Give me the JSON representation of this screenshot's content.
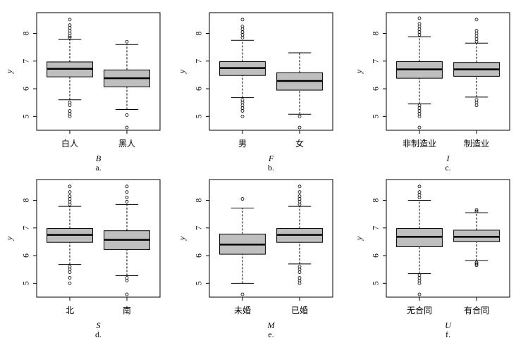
{
  "chart_data": [
    {
      "type": "box",
      "y_label": "y",
      "x_label": "B",
      "caption": "a.",
      "categories": [
        "白人",
        "黑人"
      ],
      "color": "#bfbfbf",
      "ylim": [
        4.5,
        8.75
      ],
      "yticks": [
        5,
        6,
        7,
        8
      ],
      "boxes": [
        {
          "whisker_low": 5.6,
          "q1": 6.43,
          "median": 6.72,
          "q3": 6.97,
          "whisker_high": 7.78,
          "outliers": [
            7.85,
            7.9,
            8.0,
            8.1,
            8.2,
            8.3,
            8.5,
            5.5,
            5.4,
            5.2,
            5.1,
            5.0
          ]
        },
        {
          "whisker_low": 5.25,
          "q1": 6.07,
          "median": 6.38,
          "q3": 6.68,
          "whisker_high": 7.6,
          "outliers": [
            7.7,
            5.05,
            4.6
          ]
        }
      ]
    },
    {
      "type": "box",
      "y_label": "y",
      "x_label": "F",
      "caption": "b.",
      "categories": [
        "男",
        "女"
      ],
      "color": "#bfbfbf",
      "ylim": [
        4.5,
        8.75
      ],
      "yticks": [
        5,
        6,
        7,
        8
      ],
      "boxes": [
        {
          "whisker_low": 5.68,
          "q1": 6.48,
          "median": 6.75,
          "q3": 6.98,
          "whisker_high": 7.75,
          "outliers": [
            7.85,
            7.95,
            8.05,
            8.15,
            8.25,
            8.5,
            5.6,
            5.5,
            5.4,
            5.3,
            5.2,
            5.0
          ]
        },
        {
          "whisker_low": 5.08,
          "q1": 5.95,
          "median": 6.28,
          "q3": 6.58,
          "whisker_high": 7.3,
          "outliers": [
            5.0,
            4.6
          ]
        }
      ]
    },
    {
      "type": "box",
      "y_label": "y",
      "x_label": "I",
      "caption": "c.",
      "categories": [
        "非制造业",
        "制造业"
      ],
      "color": "#bfbfbf",
      "ylim": [
        4.5,
        8.75
      ],
      "yticks": [
        5,
        6,
        7,
        8
      ],
      "boxes": [
        {
          "whisker_low": 5.45,
          "q1": 6.38,
          "median": 6.7,
          "q3": 6.98,
          "whisker_high": 7.88,
          "outliers": [
            7.95,
            8.05,
            8.15,
            8.25,
            8.35,
            8.55,
            5.4,
            5.3,
            5.2,
            5.1,
            5.0,
            4.6
          ]
        },
        {
          "whisker_low": 5.7,
          "q1": 6.45,
          "median": 6.7,
          "q3": 6.95,
          "whisker_high": 7.65,
          "outliers": [
            7.7,
            7.8,
            7.9,
            8.0,
            8.1,
            8.5,
            5.6,
            5.5,
            5.4
          ]
        }
      ]
    },
    {
      "type": "box",
      "y_label": "y",
      "x_label": "S",
      "caption": "d.",
      "categories": [
        "北",
        "南"
      ],
      "color": "#bfbfbf",
      "ylim": [
        4.5,
        8.75
      ],
      "yticks": [
        5,
        6,
        7,
        8
      ],
      "boxes": [
        {
          "whisker_low": 5.68,
          "q1": 6.48,
          "median": 6.75,
          "q3": 6.98,
          "whisker_high": 7.78,
          "outliers": [
            7.85,
            7.95,
            8.05,
            8.15,
            8.3,
            8.5,
            5.6,
            5.5,
            5.4,
            5.2,
            5.0
          ]
        },
        {
          "whisker_low": 5.28,
          "q1": 6.22,
          "median": 6.57,
          "q3": 6.9,
          "whisker_high": 7.85,
          "outliers": [
            7.95,
            8.1,
            8.3,
            8.5,
            5.2,
            5.1,
            4.6
          ]
        }
      ]
    },
    {
      "type": "box",
      "y_label": "y",
      "x_label": "M",
      "caption": "e.",
      "categories": [
        "未婚",
        "已婚"
      ],
      "color": "#bfbfbf",
      "ylim": [
        4.5,
        8.75
      ],
      "yticks": [
        5,
        6,
        7,
        8
      ],
      "boxes": [
        {
          "whisker_low": 5.0,
          "q1": 6.05,
          "median": 6.4,
          "q3": 6.78,
          "whisker_high": 7.72,
          "outliers": [
            8.05,
            4.6
          ]
        },
        {
          "whisker_low": 5.7,
          "q1": 6.48,
          "median": 6.75,
          "q3": 6.98,
          "whisker_high": 7.78,
          "outliers": [
            7.85,
            7.95,
            8.05,
            8.15,
            8.3,
            8.5,
            5.6,
            5.5,
            5.4,
            5.2,
            5.1,
            5.0
          ]
        }
      ]
    },
    {
      "type": "box",
      "y_label": "y",
      "x_label": "U",
      "caption": "f.",
      "categories": [
        "无合同",
        "有合同"
      ],
      "color": "#bfbfbf",
      "ylim": [
        4.5,
        8.75
      ],
      "yticks": [
        5,
        6,
        7,
        8
      ],
      "boxes": [
        {
          "whisker_low": 5.35,
          "q1": 6.32,
          "median": 6.68,
          "q3": 6.98,
          "whisker_high": 8.0,
          "outliers": [
            8.1,
            8.2,
            8.3,
            8.5,
            5.3,
            5.2,
            5.1,
            5.0,
            4.6
          ]
        },
        {
          "whisker_low": 5.82,
          "q1": 6.5,
          "median": 6.68,
          "q3": 6.92,
          "whisker_high": 7.55,
          "outliers": [
            7.6,
            7.65,
            5.75,
            5.7,
            5.65
          ]
        }
      ]
    }
  ]
}
